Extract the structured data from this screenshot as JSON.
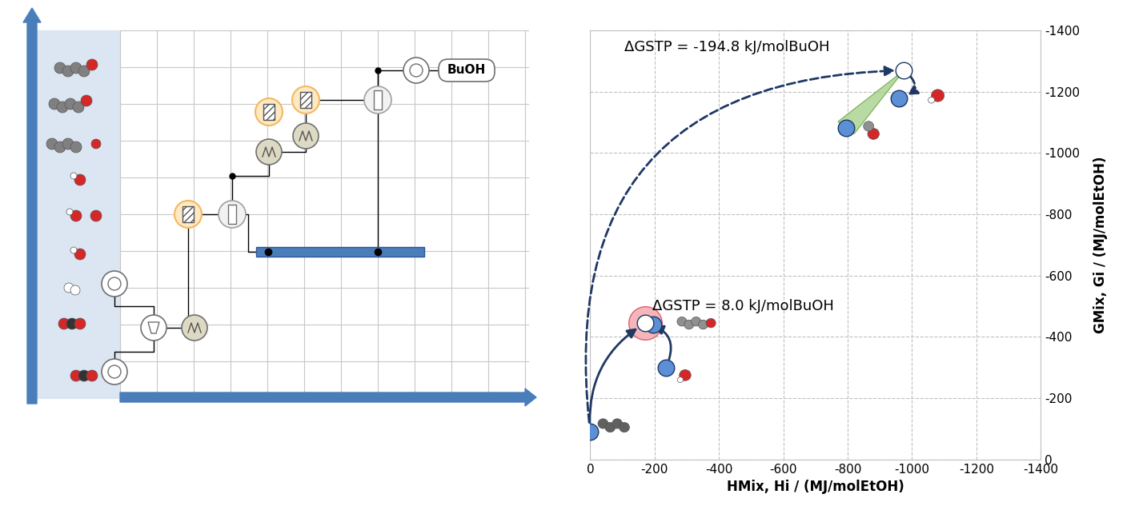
{
  "chart_data": {
    "type": "scatter",
    "x": [
      0,
      -235,
      -170,
      -195,
      -975,
      -960,
      -795
    ],
    "values": [
      -92,
      -300,
      -445,
      -440,
      -1269,
      -1177,
      -1082
    ],
    "colors": [
      "#5b8fd6",
      "#5b8fd6",
      "#ffffff",
      "#5b8fd6",
      "#ffffff",
      "#5b8fd6",
      "#5b8fd6"
    ],
    "xlabel": "HMix, Hi / (MJ/molEtOH)",
    "ylabel": "GMix, Gi / (MJ/molEtOH)",
    "xlim": [
      0,
      -1400
    ],
    "ylim": [
      0,
      -1400
    ],
    "xticks": [
      0,
      -200,
      -400,
      -600,
      -800,
      -1000,
      -1200,
      -1400
    ],
    "yticks": [
      0,
      -200,
      -400,
      -600,
      -800,
      -1000,
      -1200,
      -1400
    ],
    "grid": true,
    "annotations": [
      "ΔGSTP = -194.8 kJ/molBuOH",
      "ΔGSTP = 8.0 kJ/molBuOH"
    ]
  },
  "diagram": {
    "nodes": [
      {
        "label": "BuOH"
      }
    ]
  }
}
